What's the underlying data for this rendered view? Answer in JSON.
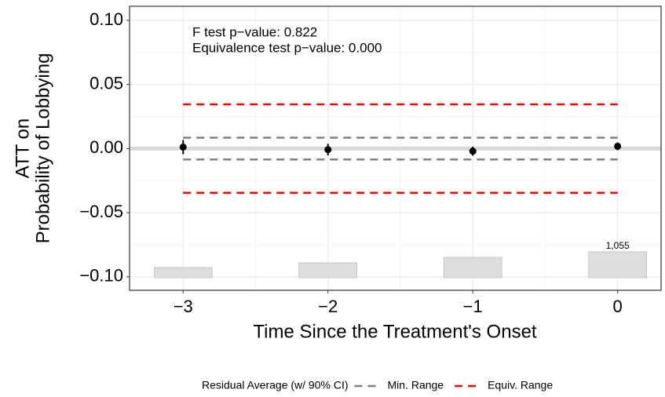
{
  "chart_data": {
    "type": "errorbar",
    "ylabel": [
      "ATT on",
      "Probability of Lobbying"
    ],
    "xlabel": "Time Since the Treatment's Onset",
    "annotations": [
      "F test p−value: 0.822",
      "Equivalence test p−value: 0.000"
    ],
    "x": [
      -3,
      -2,
      -1,
      0
    ],
    "values": [
      0.0012,
      -0.0008,
      -0.002,
      0.0018
    ],
    "errors": [
      0.0055,
      0.0045,
      0.0035,
      0.003
    ],
    "color": "#000000",
    "legend_title": "Residual Average (w/ 90% CI)",
    "ranges": [
      {
        "name": "Min. Range",
        "color": "#808080",
        "values": [
          -0.0085,
          0.0085
        ]
      },
      {
        "name": "Equiv. Range",
        "color": "#ff0000",
        "values": [
          -0.0345,
          0.0345
        ]
      }
    ],
    "counts": [
      416,
      607,
      831,
      1055
    ],
    "count_labels": [
      null,
      null,
      null,
      "1,055"
    ],
    "xlim": [
      -3.37,
      0.3
    ],
    "ylim": [
      -0.1105,
      0.111
    ],
    "xticks": [
      {
        "value": -3,
        "label": "−3"
      },
      {
        "value": -2,
        "label": "−2"
      },
      {
        "value": -1,
        "label": "−1"
      },
      0
    ],
    "yticks": [
      {
        "value": -0.1,
        "label": "−0.10"
      },
      {
        "value": -0.05,
        "label": "−0.05"
      },
      {
        "value": 0,
        "label": "0.00"
      },
      {
        "value": 0.05,
        "label": "0.05"
      },
      {
        "value": 0.1,
        "label": "0.10"
      }
    ],
    "grid": true,
    "legend_position": "bottom"
  }
}
